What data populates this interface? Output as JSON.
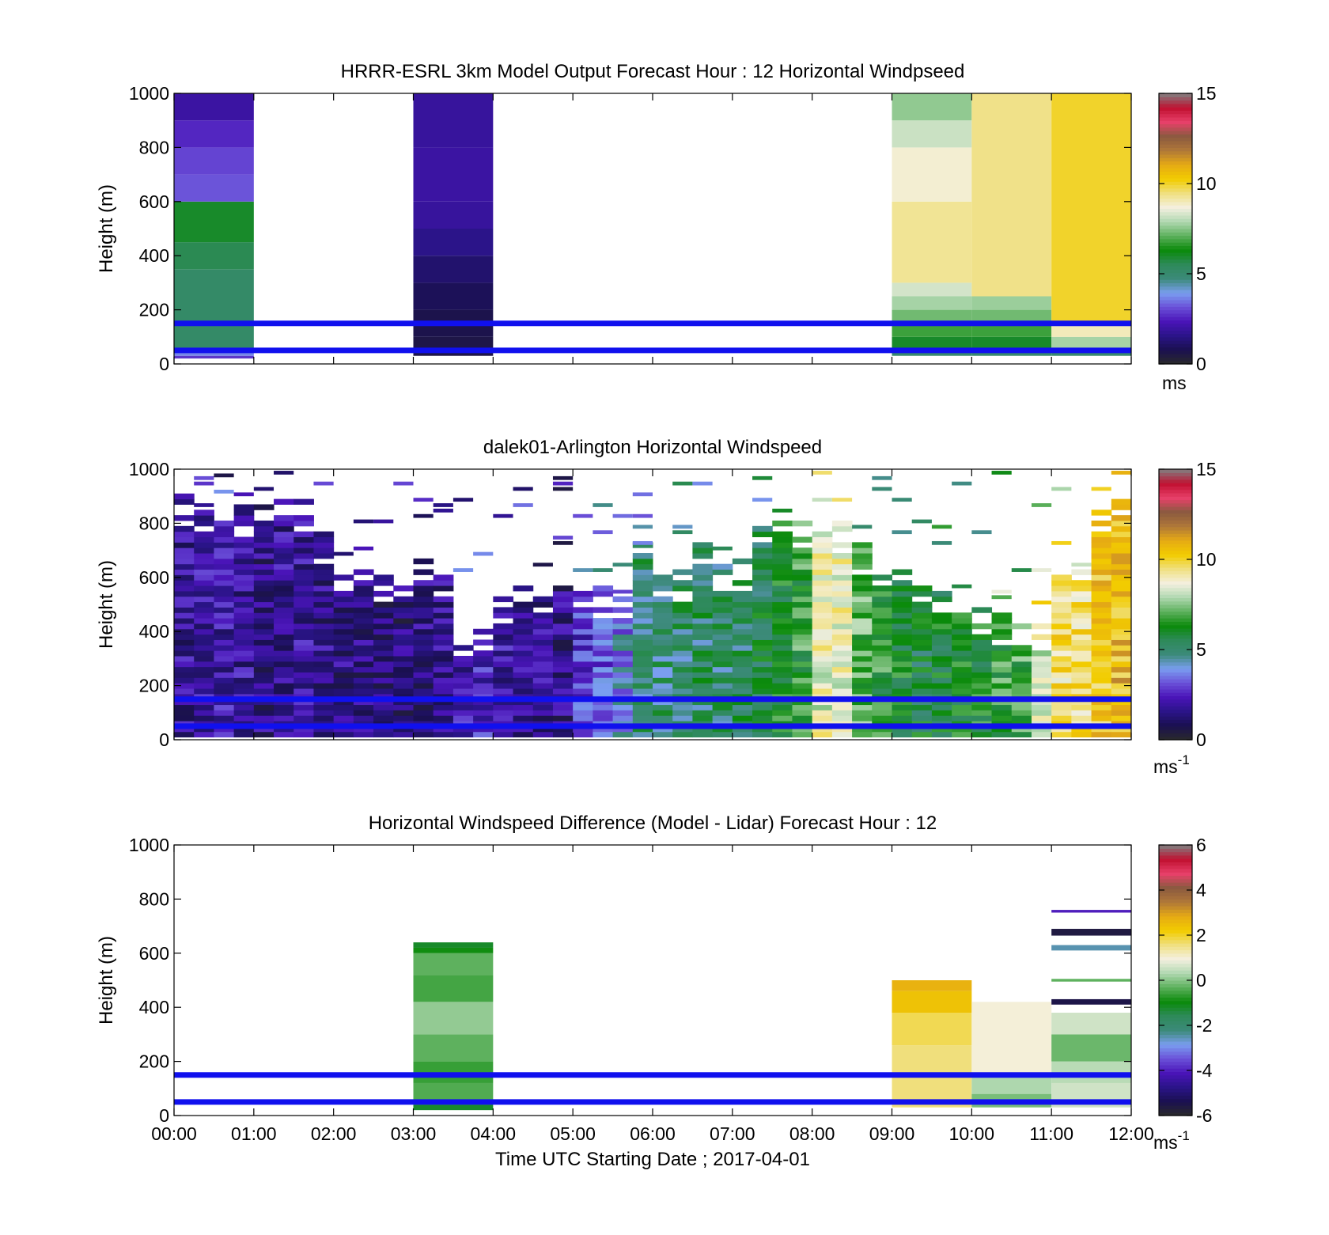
{
  "figure": {
    "xlabel": "Time UTC  Starting Date ; 2017-04-01",
    "x_tick_labels": [
      "00:00",
      "01:00",
      "02:00",
      "03:00",
      "04:00",
      "05:00",
      "06:00",
      "07:00",
      "08:00",
      "09:00",
      "10:00",
      "11:00",
      "12:00"
    ]
  },
  "reference_lines": {
    "heights_m": [
      150,
      50
    ],
    "color": "#1010ee"
  },
  "colormap": [
    "#2a2a2a",
    "#1a1050",
    "#2a1488",
    "#4a14b8",
    "#6a50d8",
    "#7a9ef0",
    "#3c8a7a",
    "#2e8a5a",
    "#0a8a0a",
    "#5cb05c",
    "#b0d8b0",
    "#f4f0e0",
    "#f0e080",
    "#f2cc00",
    "#e6aa14",
    "#b07838",
    "#8a5a40",
    "#e8406a",
    "#c01030",
    "#808080"
  ],
  "chart_data": [
    {
      "type": "heatmap",
      "title": "HRRR-ESRL 3km Model Output   Forecast Hour : 12 Horizontal Windpseed",
      "xlabel": "",
      "ylabel": "Height (m)",
      "xlim": [
        0,
        12
      ],
      "ylim": [
        0,
        1000
      ],
      "y_ticks": [
        "0",
        "200",
        "400",
        "600",
        "800",
        "1000"
      ],
      "colorbar": {
        "ticks": [
          "0",
          "5",
          "10",
          "15"
        ],
        "range": [
          0,
          15
        ],
        "unit": "ms",
        "unit_sup": ""
      },
      "columns": [
        {
          "x": [
            0,
            1
          ],
          "segments": [
            [
              20,
              30,
              2.8
            ],
            [
              30,
              60,
              3.7
            ],
            [
              60,
              350,
              5.2
            ],
            [
              350,
              450,
              5.6
            ],
            [
              450,
              600,
              6.0
            ],
            [
              600,
              700,
              3.2
            ],
            [
              700,
              800,
              3.0
            ],
            [
              800,
              900,
              2.6
            ],
            [
              900,
              1000,
              2.0
            ]
          ]
        },
        {
          "x": [
            3,
            4
          ],
          "segments": [
            [
              30,
              100,
              0.6
            ],
            [
              100,
              200,
              0.7
            ],
            [
              200,
              300,
              0.9
            ],
            [
              300,
              400,
              1.2
            ],
            [
              400,
              500,
              1.6
            ],
            [
              500,
              600,
              1.9
            ],
            [
              600,
              800,
              2.0
            ],
            [
              800,
              1000,
              1.9
            ]
          ]
        },
        {
          "x": [
            9,
            10
          ],
          "segments": [
            [
              30,
              50,
              5.0
            ],
            [
              50,
              100,
              6.0
            ],
            [
              100,
              150,
              6.8
            ],
            [
              150,
              200,
              7.3
            ],
            [
              200,
              250,
              7.8
            ],
            [
              250,
              300,
              8.3
            ],
            [
              300,
              600,
              9.3
            ],
            [
              600,
              800,
              8.8
            ],
            [
              800,
              900,
              8.2
            ],
            [
              900,
              1000,
              7.6
            ]
          ]
        },
        {
          "x": [
            10,
            11
          ],
          "segments": [
            [
              30,
              50,
              5.0
            ],
            [
              50,
              100,
              6.0
            ],
            [
              100,
              150,
              6.8
            ],
            [
              150,
              200,
              7.3
            ],
            [
              200,
              250,
              7.7
            ],
            [
              250,
              1000,
              9.4
            ]
          ]
        },
        {
          "x": [
            11,
            12
          ],
          "segments": [
            [
              30,
              50,
              5.0
            ],
            [
              50,
              100,
              7.8
            ],
            [
              100,
              150,
              9.0
            ],
            [
              150,
              1000,
              10.0
            ]
          ]
        }
      ]
    },
    {
      "type": "heatmap",
      "title": "dalek01-Arlington  Horizontal Windspeed",
      "xlabel": "",
      "ylabel": "Height (m)",
      "xlim": [
        0,
        12
      ],
      "ylim": [
        0,
        1000
      ],
      "y_ticks": [
        "0",
        "200",
        "400",
        "600",
        "800",
        "1000"
      ],
      "colorbar": {
        "ticks": [
          "0",
          "5",
          "10",
          "15"
        ],
        "range": [
          0,
          15
        ],
        "unit": "ms",
        "unit_sup": "-1"
      },
      "profile_step_hours": 0.25,
      "profiles": [
        {
          "top": 900,
          "speed": 1.8
        },
        {
          "top": 860,
          "speed": 2.0
        },
        {
          "top": 850,
          "speed": 2.1
        },
        {
          "top": 860,
          "speed": 1.9
        },
        {
          "top": 880,
          "speed": 1.6
        },
        {
          "top": 900,
          "speed": 1.8
        },
        {
          "top": 880,
          "speed": 1.9
        },
        {
          "top": 760,
          "speed": 1.7
        },
        {
          "top": 660,
          "speed": 1.6
        },
        {
          "top": 640,
          "speed": 1.5
        },
        {
          "top": 600,
          "speed": 1.3
        },
        {
          "top": 560,
          "speed": 1.4
        },
        {
          "top": 660,
          "speed": 1.6
        },
        {
          "top": 600,
          "speed": 1.8
        },
        {
          "top": 380,
          "speed": 2.2
        },
        {
          "top": 400,
          "speed": 2.6
        },
        {
          "top": 520,
          "speed": 2.0
        },
        {
          "top": 560,
          "speed": 1.9
        },
        {
          "top": 540,
          "speed": 1.8
        },
        {
          "top": 560,
          "speed": 1.6
        },
        {
          "top": 540,
          "speed": 2.8
        },
        {
          "top": 560,
          "speed": 3.2
        },
        {
          "top": 540,
          "speed": 3.8
        },
        {
          "top": 720,
          "speed": 5.0
        },
        {
          "top": 620,
          "speed": 5.0
        },
        {
          "top": 620,
          "speed": 5.1
        },
        {
          "top": 720,
          "speed": 5.2
        },
        {
          "top": 640,
          "speed": 5.1
        },
        {
          "top": 660,
          "speed": 5.3
        },
        {
          "top": 780,
          "speed": 5.6
        },
        {
          "top": 800,
          "speed": 6.2
        },
        {
          "top": 820,
          "speed": 6.6
        },
        {
          "top": 780,
          "speed": 8.6
        },
        {
          "top": 800,
          "speed": 8.8
        },
        {
          "top": 720,
          "speed": 7.0
        },
        {
          "top": 660,
          "speed": 6.5
        },
        {
          "top": 620,
          "speed": 6.0
        },
        {
          "top": 560,
          "speed": 5.7
        },
        {
          "top": 540,
          "speed": 5.9
        },
        {
          "top": 520,
          "speed": 6.1
        },
        {
          "top": 480,
          "speed": 6.3
        },
        {
          "top": 460,
          "speed": 6.6
        },
        {
          "top": 440,
          "speed": 6.8
        },
        {
          "top": 440,
          "speed": 8.4
        },
        {
          "top": 680,
          "speed": 9.6
        },
        {
          "top": 620,
          "speed": 9.5
        },
        {
          "top": 880,
          "speed": 10.2
        },
        {
          "top": 880,
          "speed": 10.6
        }
      ]
    },
    {
      "type": "heatmap",
      "title": "Horizontal Windspeed Difference (Model - Lidar) Forecast Hour : 12",
      "xlabel": "Time UTC  Starting Date ; 2017-04-01",
      "ylabel": "Height (m)",
      "xlim": [
        0,
        12
      ],
      "ylim": [
        0,
        1000
      ],
      "y_ticks": [
        "0",
        "200",
        "400",
        "600",
        "800",
        "1000"
      ],
      "colorbar": {
        "ticks": [
          "-6",
          "-4",
          "-2",
          "0",
          "2",
          "4",
          "6"
        ],
        "range": [
          -6,
          6
        ],
        "unit": "ms",
        "unit_sup": "-1"
      },
      "columns": [
        {
          "x": [
            3,
            4
          ],
          "segments": [
            [
              20,
              40,
              -1.2
            ],
            [
              40,
              120,
              -0.4
            ],
            [
              120,
              200,
              -0.6
            ],
            [
              200,
              300,
              -0.3
            ],
            [
              300,
              420,
              0.1
            ],
            [
              420,
              520,
              -0.5
            ],
            [
              520,
              600,
              -0.3
            ],
            [
              600,
              620,
              -0.9
            ],
            [
              620,
              640,
              -1.2
            ]
          ]
        },
        {
          "x": [
            9,
            10
          ],
          "segments": [
            [
              30,
              260,
              1.6
            ],
            [
              260,
              380,
              1.8
            ],
            [
              380,
              460,
              2.4
            ],
            [
              460,
              500,
              2.7
            ]
          ]
        },
        {
          "x": [
            10,
            11
          ],
          "segments": [
            [
              30,
              80,
              -0.1
            ],
            [
              80,
              150,
              0.3
            ],
            [
              150,
              420,
              1.0
            ]
          ]
        },
        {
          "x": [
            11,
            12
          ],
          "segments": [
            [
              30,
              120,
              0.6
            ],
            [
              120,
              200,
              0.4
            ],
            [
              200,
              300,
              -0.2
            ],
            [
              300,
              380,
              0.6
            ],
            [
              410,
              430,
              -5.5
            ],
            [
              495,
              505,
              -0.3
            ],
            [
              610,
              630,
              -2.5
            ],
            [
              665,
              690,
              -5.6
            ],
            [
              750,
              760,
              -4.0
            ]
          ]
        }
      ]
    }
  ]
}
